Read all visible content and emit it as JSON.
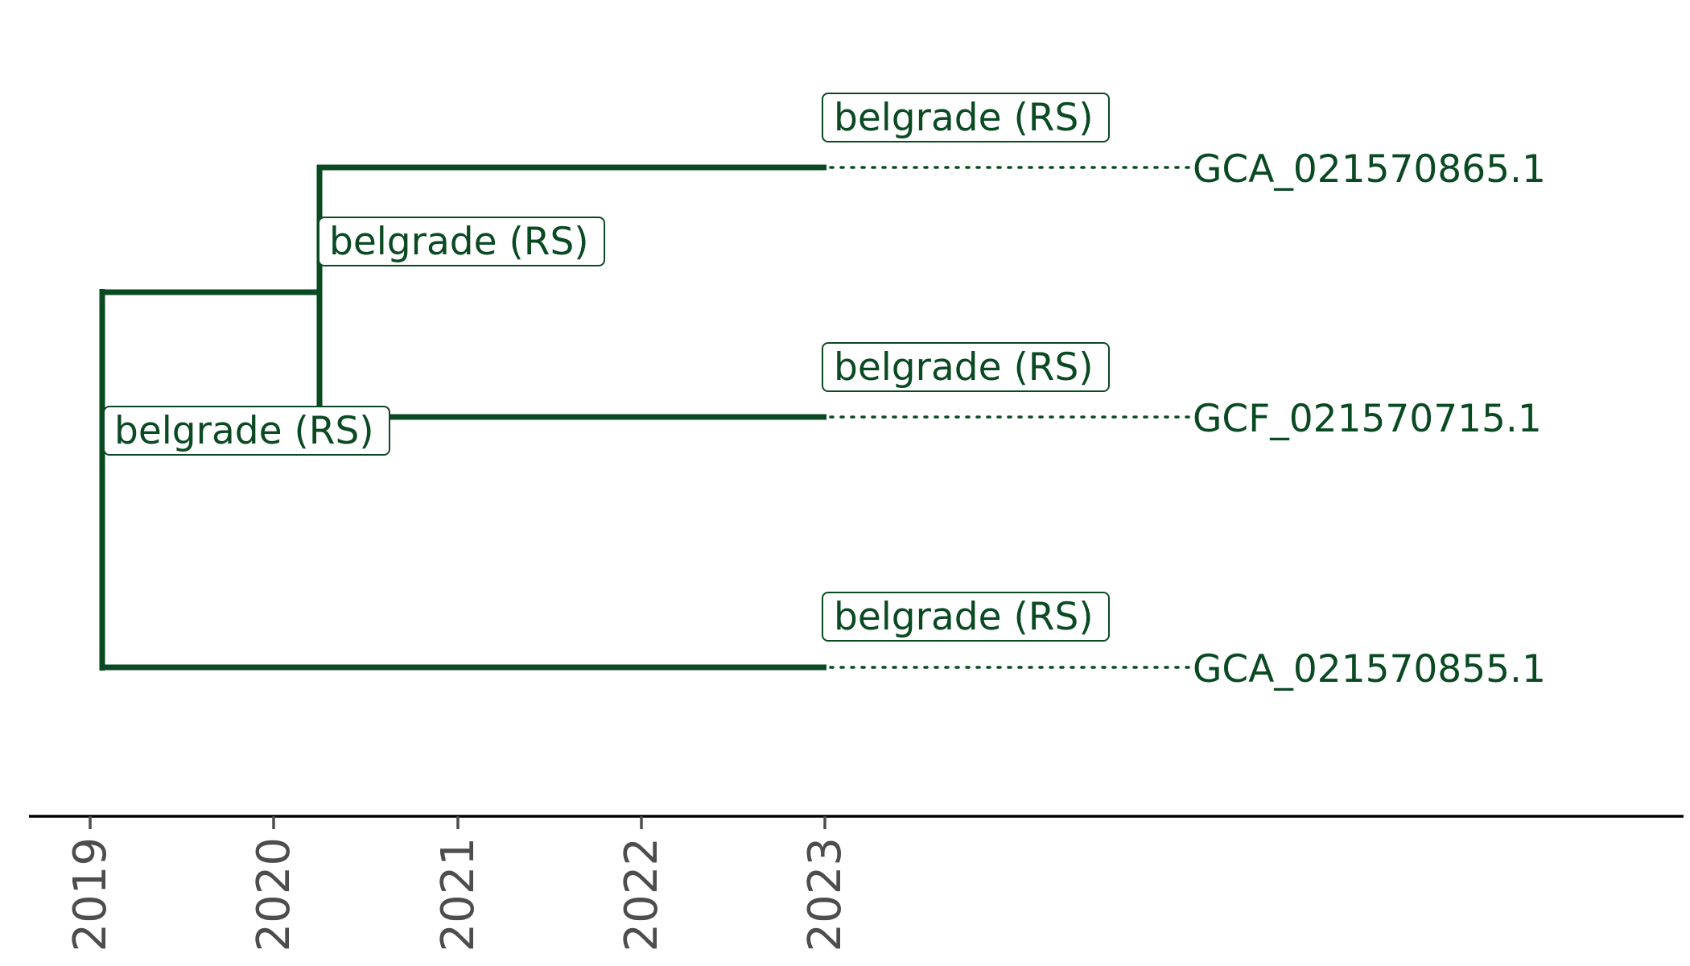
{
  "tree": {
    "tips": [
      {
        "id": "GCA_021570865.1",
        "location": "belgrade (RS)",
        "date": 2023.0
      },
      {
        "id": "GCF_021570715.1",
        "location": "belgrade (RS)",
        "date": 2023.0
      },
      {
        "id": "GCA_021570855.1",
        "location": "belgrade (RS)",
        "date": 2023.0
      }
    ],
    "internal_nodes": [
      {
        "id": "root",
        "location": "belgrade (RS)",
        "date": 2019.07
      },
      {
        "id": "clade-1",
        "location": "belgrade (RS)",
        "date": 2020.25
      }
    ]
  },
  "axis": {
    "ticks": [
      "2019",
      "2020",
      "2021",
      "2022",
      "2023"
    ]
  },
  "colors": {
    "branch": "#0a4a22",
    "axis": "#000000",
    "tick_label": "#4d4d4d"
  }
}
